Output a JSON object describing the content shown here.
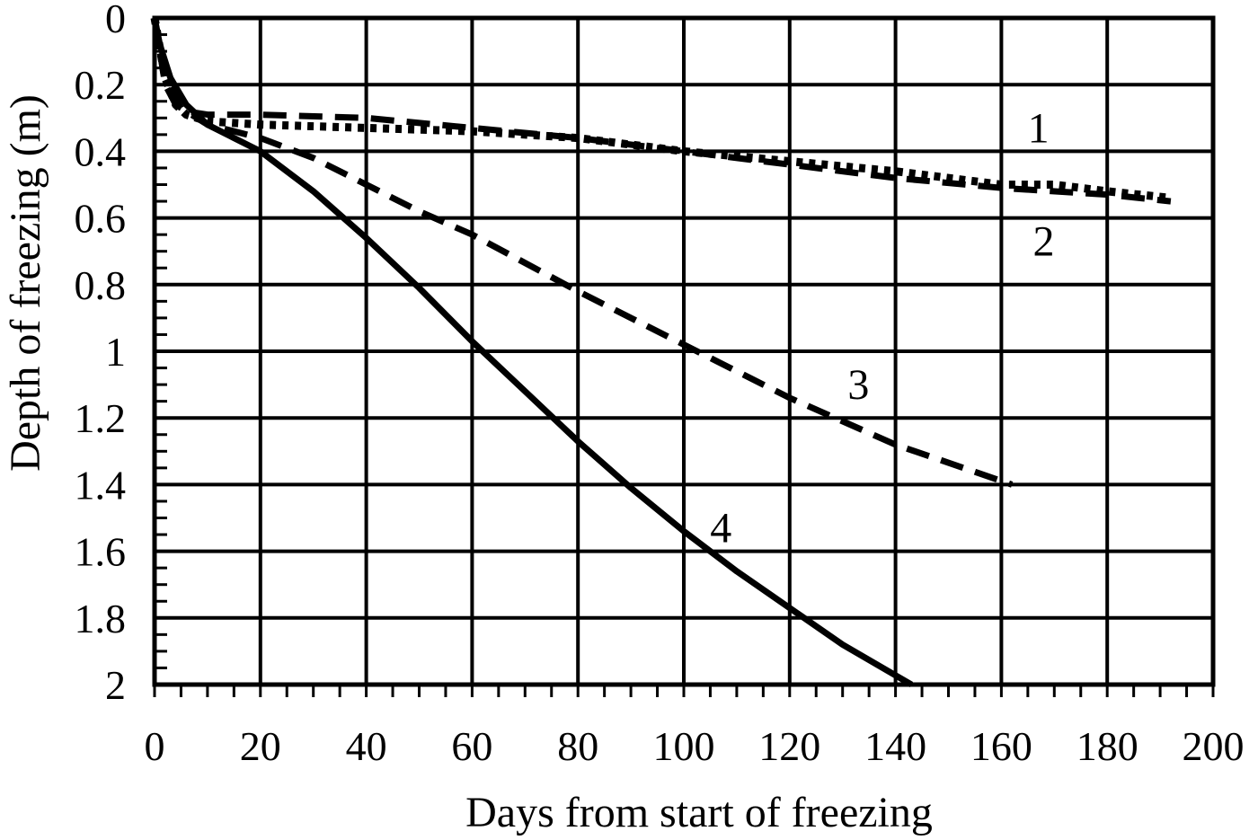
{
  "chart_data": {
    "type": "line",
    "xlabel": "Days from start of freezing",
    "ylabel": "Depth of freezing (m)",
    "xlim": [
      0,
      200
    ],
    "ylim": [
      0,
      2
    ],
    "y_inverted": true,
    "grid": true,
    "x_ticks": [
      "0",
      "20",
      "40",
      "60",
      "80",
      "100",
      "120",
      "140",
      "160",
      "180",
      "200"
    ],
    "y_ticks": [
      "0",
      "0.2",
      "0.4",
      "0.6",
      "0.8",
      "1",
      "1.2",
      "1.4",
      "1.6",
      "1.8",
      "2"
    ],
    "series": [
      {
        "name": "1",
        "style": "dotted",
        "x": [
          0,
          2,
          4,
          6,
          10,
          20,
          40,
          60,
          80,
          100,
          120,
          140,
          160,
          170,
          180,
          192
        ],
        "y": [
          0,
          0.18,
          0.26,
          0.29,
          0.31,
          0.32,
          0.33,
          0.34,
          0.36,
          0.4,
          0.43,
          0.46,
          0.5,
          0.5,
          0.52,
          0.54
        ]
      },
      {
        "name": "2",
        "style": "dashed",
        "x": [
          0,
          2,
          4,
          6,
          10,
          20,
          40,
          60,
          80,
          100,
          120,
          140,
          160,
          180,
          192
        ],
        "y": [
          0,
          0.2,
          0.26,
          0.28,
          0.29,
          0.29,
          0.3,
          0.33,
          0.36,
          0.4,
          0.44,
          0.48,
          0.51,
          0.53,
          0.55
        ]
      },
      {
        "name": "3",
        "style": "dashed",
        "x": [
          0,
          2,
          5,
          10,
          15,
          20,
          30,
          40,
          50,
          60,
          80,
          100,
          120,
          140,
          162
        ],
        "y": [
          0,
          0.18,
          0.27,
          0.32,
          0.34,
          0.36,
          0.42,
          0.5,
          0.58,
          0.65,
          0.82,
          0.98,
          1.14,
          1.28,
          1.4
        ]
      },
      {
        "name": "4",
        "style": "solid",
        "x": [
          0,
          1,
          3,
          6,
          10,
          15,
          20,
          30,
          40,
          50,
          60,
          70,
          80,
          90,
          100,
          110,
          120,
          130,
          143
        ],
        "y": [
          0,
          0.08,
          0.18,
          0.26,
          0.32,
          0.36,
          0.4,
          0.52,
          0.66,
          0.81,
          0.97,
          1.12,
          1.27,
          1.41,
          1.54,
          1.66,
          1.77,
          1.88,
          2.0
        ]
      }
    ],
    "labels": [
      {
        "text": "1",
        "x": 167,
        "y": 0.33
      },
      {
        "text": "2",
        "x": 168,
        "y": 0.67
      },
      {
        "text": "3",
        "x": 133,
        "y": 1.1
      },
      {
        "text": "4",
        "x": 107,
        "y": 1.53
      }
    ]
  }
}
